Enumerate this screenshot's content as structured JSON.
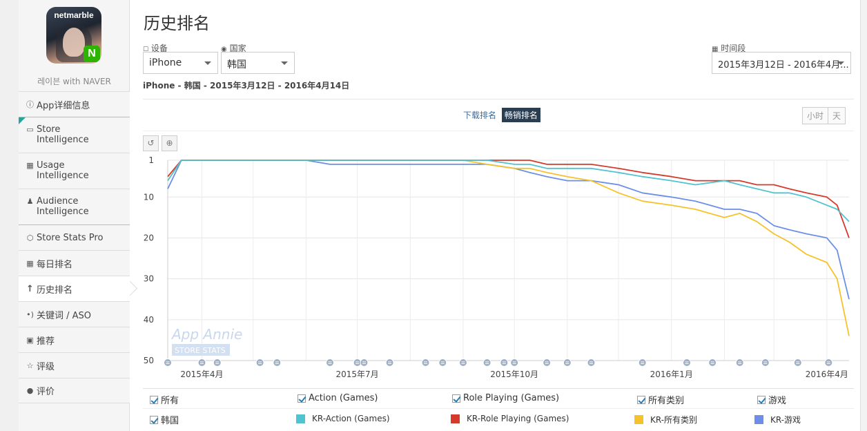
{
  "sidebar": {
    "app_brand": "netmarble",
    "app_badge": "N",
    "app_name": "레이븐 with NAVER",
    "items": [
      {
        "label": "App详细信息"
      },
      {
        "label": "Store Intelligence"
      },
      {
        "label": "Usage Intelligence"
      },
      {
        "label": "Audience Intelligence"
      },
      {
        "label": "Store Stats Pro"
      },
      {
        "label": "每日排名"
      },
      {
        "label": "历史排名"
      },
      {
        "label": "关键词 / ASO"
      },
      {
        "label": "推荐"
      },
      {
        "label": "评级"
      },
      {
        "label": "评价"
      }
    ]
  },
  "header": {
    "title": "历史排名"
  },
  "filters": {
    "device_label": "设备",
    "device_value": "iPhone",
    "country_label": "国家",
    "country_value": "韩国",
    "period_label": "时间段",
    "period_value": "2015年3月12日 - 2016年4月..."
  },
  "summary": "iPhone - 韩国 - 2015年3月12日 - 2016年4月14日",
  "chart_tabs": {
    "downloads": "下载排名",
    "grossing": "畅销排名"
  },
  "granularity": {
    "hour": "小时",
    "day": "天"
  },
  "tools": {
    "reset": "↺",
    "zoom": "⊕"
  },
  "watermark": {
    "line1": "App Annie",
    "line2": "STORE STATS"
  },
  "chart_data": {
    "type": "line",
    "y_inverted": true,
    "ylim": [
      1,
      50
    ],
    "yticks": [
      1,
      10,
      20,
      30,
      40,
      50
    ],
    "x": [
      "2015-03-12",
      "2015-03-20",
      "2015-04-01",
      "2015-04-15",
      "2015-05-01",
      "2015-05-15",
      "2015-06-01",
      "2015-06-15",
      "2015-07-01",
      "2015-07-15",
      "2015-08-01",
      "2015-08-15",
      "2015-09-01",
      "2015-09-15",
      "2015-10-01",
      "2015-10-10",
      "2015-10-20",
      "2015-11-01",
      "2015-11-15",
      "2015-12-01",
      "2015-12-15",
      "2016-01-01",
      "2016-01-15",
      "2016-02-01",
      "2016-02-10",
      "2016-02-20",
      "2016-03-01",
      "2016-03-10",
      "2016-03-20",
      "2016-04-01",
      "2016-04-07",
      "2016-04-14"
    ],
    "xticks": [
      {
        "date": "2015-04-01",
        "label": "2015年4月"
      },
      {
        "date": "2015-07-01",
        "label": "2015年7月"
      },
      {
        "date": "2015-10-01",
        "label": "2015年10月"
      },
      {
        "date": "2016-01-01",
        "label": "2016年1月"
      },
      {
        "date": "2016-04-01",
        "label": "2016年4月"
      }
    ],
    "series": [
      {
        "name": "KR-Action (Games)",
        "color": "#4fc3cf",
        "values": [
          6,
          1,
          1,
          1,
          1,
          1,
          1,
          1,
          1,
          1,
          1,
          1,
          1,
          1,
          2,
          2,
          3,
          3,
          3,
          4,
          5,
          6,
          7,
          6,
          7,
          8,
          9,
          9,
          10,
          12,
          13,
          16
        ]
      },
      {
        "name": "KR-Role Playing (Games)",
        "color": "#d43a2a",
        "values": [
          5,
          1,
          1,
          1,
          1,
          1,
          1,
          1,
          1,
          1,
          1,
          1,
          1,
          1,
          1,
          1,
          2,
          2,
          2,
          3,
          4,
          5,
          6,
          6,
          6,
          7,
          7,
          8,
          9,
          10,
          12,
          20
        ]
      },
      {
        "name": "KR-所有类别",
        "color": "#f6c22a",
        "values": [
          6,
          1,
          1,
          1,
          1,
          1,
          1,
          1,
          1,
          1,
          1,
          1,
          1,
          2,
          3,
          3,
          4,
          5,
          6,
          9,
          11,
          12,
          13,
          15,
          14,
          16,
          19,
          21,
          24,
          26,
          30,
          44
        ]
      },
      {
        "name": "KR-游戏",
        "color": "#6b8fe8",
        "values": [
          8,
          1,
          1,
          1,
          1,
          1,
          1,
          2,
          2,
          2,
          2,
          2,
          2,
          2,
          3,
          4,
          5,
          6,
          6,
          7,
          9,
          10,
          11,
          13,
          13,
          14,
          17,
          18,
          19,
          20,
          23,
          35
        ]
      }
    ],
    "annotation_dates": [
      "2015-03-12",
      "2015-04-01",
      "2015-04-10",
      "2015-05-05",
      "2015-05-15",
      "2015-06-15",
      "2015-07-01",
      "2015-07-05",
      "2015-07-20",
      "2015-08-10",
      "2015-08-20",
      "2015-09-01",
      "2015-09-15",
      "2015-09-25",
      "2015-10-01",
      "2015-10-20",
      "2015-11-01",
      "2015-11-15",
      "2015-12-15",
      "2016-01-10",
      "2016-01-25",
      "2016-02-10",
      "2016-02-25",
      "2016-03-15",
      "2016-04-02"
    ]
  },
  "legend": {
    "top": [
      {
        "label": "所有"
      },
      {
        "label": "Action (Games)"
      },
      {
        "label": "Role Playing (Games)"
      },
      {
        "label": "所有类别"
      },
      {
        "label": "游戏"
      }
    ],
    "country": {
      "label": "韩国"
    },
    "series_labels": [
      "KR-Action (Games)",
      "KR-Role Playing (Games)",
      "KR-所有类别",
      "KR-游戏"
    ]
  }
}
